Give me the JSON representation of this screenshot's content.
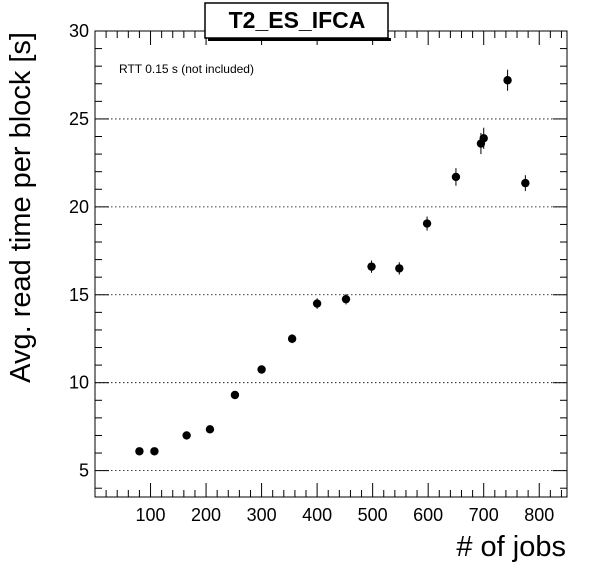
{
  "chart_data": {
    "type": "scatter",
    "title": "T2_ES_IFCA",
    "xlabel": "# of jobs",
    "ylabel": "Avg. read time per block [s]",
    "annotation": "RTT 0.15 s (not included)",
    "xlim": [
      0,
      850
    ],
    "ylim": [
      3.5,
      30
    ],
    "x_ticks": [
      100,
      200,
      300,
      400,
      500,
      600,
      700,
      800
    ],
    "y_ticks": [
      5,
      10,
      15,
      20,
      25,
      30
    ],
    "y_grid": true,
    "x_grid": false,
    "colors": {
      "marker": "#000000",
      "grid": "#000000",
      "axis": "#000000"
    },
    "points": [
      {
        "x": 80,
        "y": 6.1,
        "err": 0.2
      },
      {
        "x": 107,
        "y": 6.1,
        "err": 0.2
      },
      {
        "x": 165,
        "y": 7.0,
        "err": 0.2
      },
      {
        "x": 207,
        "y": 7.35,
        "err": 0.2
      },
      {
        "x": 252,
        "y": 9.3,
        "err": 0.2
      },
      {
        "x": 300,
        "y": 10.75,
        "err": 0.2
      },
      {
        "x": 355,
        "y": 12.5,
        "err": 0.25
      },
      {
        "x": 400,
        "y": 14.5,
        "err": 0.3
      },
      {
        "x": 452,
        "y": 14.75,
        "err": 0.3
      },
      {
        "x": 498,
        "y": 16.6,
        "err": 0.35
      },
      {
        "x": 548,
        "y": 16.5,
        "err": 0.35
      },
      {
        "x": 598,
        "y": 19.05,
        "err": 0.4
      },
      {
        "x": 650,
        "y": 21.7,
        "err": 0.5
      },
      {
        "x": 695,
        "y": 23.6,
        "err": 0.6
      },
      {
        "x": 700,
        "y": 23.9,
        "err": 0.6
      },
      {
        "x": 743,
        "y": 27.2,
        "err": 0.6
      },
      {
        "x": 775,
        "y": 21.35,
        "err": 0.45
      }
    ]
  }
}
